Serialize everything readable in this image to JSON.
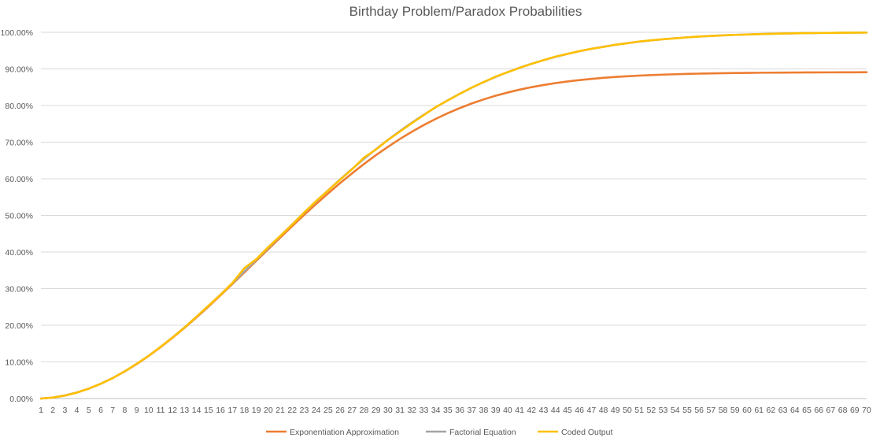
{
  "chart_data": {
    "type": "line",
    "title": "Birthday Problem/Paradox Probabilities",
    "xlabel": "",
    "ylabel": "",
    "ylim": [
      0,
      1
    ],
    "y_tick_labels": [
      "0.00%",
      "10.00%",
      "20.00%",
      "30.00%",
      "40.00%",
      "50.00%",
      "60.00%",
      "70.00%",
      "80.00%",
      "90.00%",
      "100.00%"
    ],
    "x_tick_labels": [
      "1",
      "2",
      "3",
      "4",
      "5",
      "6",
      "7",
      "8",
      "9",
      "10",
      "11",
      "12",
      "13",
      "14",
      "15",
      "16",
      "17",
      "18",
      "19",
      "20",
      "21",
      "22",
      "23",
      "24",
      "25",
      "26",
      "27",
      "28",
      "29",
      "30",
      "31",
      "32",
      "33",
      "34",
      "35",
      "36",
      "37",
      "38",
      "39",
      "40",
      "41",
      "42",
      "43",
      "44",
      "45",
      "46",
      "47",
      "48",
      "49",
      "50",
      "51",
      "52",
      "53",
      "54",
      "55",
      "56",
      "57",
      "58",
      "59",
      "60",
      "61",
      "62",
      "63",
      "64",
      "65",
      "66",
      "67",
      "68",
      "69",
      "70"
    ],
    "grid": true,
    "legend_position": "bottom",
    "series": [
      {
        "name": "Exponentiation Approximation",
        "color": "#ED7D31",
        "values": [
          0,
          0.0027,
          0.0082,
          0.0163,
          0.027,
          0.0403,
          0.0559,
          0.0739,
          0.094,
          0.1161,
          0.1401,
          0.1658,
          0.193,
          0.2215,
          0.251,
          0.2815,
          0.3127,
          0.3443,
          0.3761,
          0.4079,
          0.4395,
          0.4708,
          0.5014,
          0.5313,
          0.5602,
          0.5882,
          0.6149,
          0.6404,
          0.6646,
          0.6873,
          0.7087,
          0.7285,
          0.7469,
          0.7637,
          0.7791,
          0.793,
          0.8056,
          0.8168,
          0.8268,
          0.8356,
          0.8434,
          0.8502,
          0.8561,
          0.8613,
          0.8657,
          0.8695,
          0.8728,
          0.8756,
          0.878,
          0.88,
          0.8817,
          0.8832,
          0.8844,
          0.8855,
          0.8864,
          0.8871,
          0.8878,
          0.8883,
          0.8888,
          0.8892,
          0.8895,
          0.8898,
          0.89,
          0.8902,
          0.8904,
          0.8905,
          0.8906,
          0.8907,
          0.8908,
          0.8909
        ]
      },
      {
        "name": "Factorial Equation",
        "color": "#A5A5A5",
        "values": [
          0,
          0.0027,
          0.0082,
          0.0164,
          0.0271,
          0.0405,
          0.0562,
          0.0743,
          0.0946,
          0.1169,
          0.1411,
          0.167,
          0.1944,
          0.2231,
          0.2529,
          0.2836,
          0.315,
          0.3469,
          0.3791,
          0.4114,
          0.4437,
          0.4757,
          0.5073,
          0.5383,
          0.5687,
          0.5982,
          0.6269,
          0.6545,
          0.681,
          0.7063,
          0.7305,
          0.7533,
          0.775,
          0.7953,
          0.8144,
          0.8322,
          0.8487,
          0.8641,
          0.8782,
          0.8912,
          0.9032,
          0.914,
          0.9239,
          0.9329,
          0.941,
          0.9483,
          0.9548,
          0.9606,
          0.9658,
          0.9704,
          0.9744,
          0.978,
          0.9811,
          0.9839,
          0.9863,
          0.9883,
          0.9901,
          0.9917,
          0.993,
          0.9941,
          0.9951,
          0.9959,
          0.9966,
          0.9972,
          0.9977,
          0.9981,
          0.9984,
          0.9987,
          0.999,
          0.9992
        ]
      },
      {
        "name": "Coded Output",
        "color": "#FFC000",
        "values": [
          0,
          0.0025,
          0.008,
          0.0162,
          0.0272,
          0.0402,
          0.0558,
          0.0741,
          0.095,
          0.1165,
          0.1412,
          0.1668,
          0.194,
          0.2236,
          0.2535,
          0.283,
          0.3158,
          0.356,
          0.3805,
          0.4135,
          0.444,
          0.4751,
          0.508,
          0.5395,
          0.568,
          0.5975,
          0.626,
          0.658,
          0.68,
          0.706,
          0.729,
          0.752,
          0.774,
          0.796,
          0.814,
          0.832,
          0.849,
          0.864,
          0.879,
          0.891,
          0.903,
          0.914,
          0.924,
          0.9335,
          0.941,
          0.9485,
          0.955,
          0.96,
          0.966,
          0.97,
          0.975,
          0.978,
          0.981,
          0.9835,
          0.986,
          0.9885,
          0.99,
          0.9915,
          0.993,
          0.994,
          0.995,
          0.9958,
          0.9966,
          0.9972,
          0.9977,
          0.9981,
          0.9984,
          0.9987,
          0.999,
          0.9992
        ]
      }
    ]
  }
}
